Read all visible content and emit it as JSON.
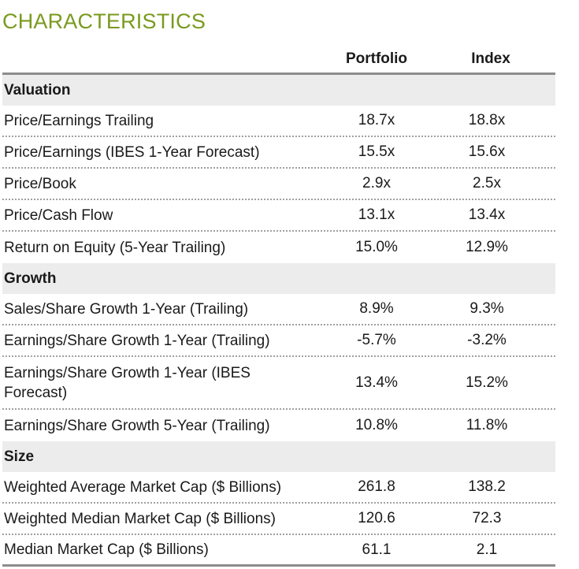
{
  "title": "CHARACTERISTICS",
  "columns": {
    "portfolio": "Portfolio",
    "index": "Index"
  },
  "sections": [
    {
      "name": "Valuation",
      "rows": [
        {
          "label": "Price/Earnings Trailing",
          "portfolio": "18.7x",
          "index": "18.8x"
        },
        {
          "label": "Price/Earnings (IBES 1-Year Forecast)",
          "portfolio": "15.5x",
          "index": "15.6x"
        },
        {
          "label": "Price/Book",
          "portfolio": "2.9x",
          "index": "2.5x"
        },
        {
          "label": "Price/Cash Flow",
          "portfolio": "13.1x",
          "index": "13.4x"
        },
        {
          "label": "Return on Equity (5-Year Trailing)",
          "portfolio": "15.0%",
          "index": "12.9%"
        }
      ]
    },
    {
      "name": "Growth",
      "rows": [
        {
          "label": "Sales/Share Growth 1-Year (Trailing)",
          "portfolio": "8.9%",
          "index": "9.3%"
        },
        {
          "label": "Earnings/Share Growth 1-Year (Trailing)",
          "portfolio": "-5.7%",
          "index": "-3.2%"
        },
        {
          "label": "Earnings/Share Growth 1-Year (IBES Forecast)",
          "portfolio": "13.4%",
          "index": "15.2%"
        },
        {
          "label": "Earnings/Share Growth 5-Year (Trailing)",
          "portfolio": "10.8%",
          "index": "11.8%"
        }
      ]
    },
    {
      "name": "Size",
      "rows": [
        {
          "label": "Weighted Average Market Cap ($ Billions)",
          "portfolio": "261.8",
          "index": "138.2"
        },
        {
          "label": "Weighted Median Market Cap ($ Billions)",
          "portfolio": "120.6",
          "index": "72.3"
        },
        {
          "label": "Median Market Cap ($ Billions)",
          "portfolio": "61.1",
          "index": "2.1"
        }
      ]
    }
  ]
}
